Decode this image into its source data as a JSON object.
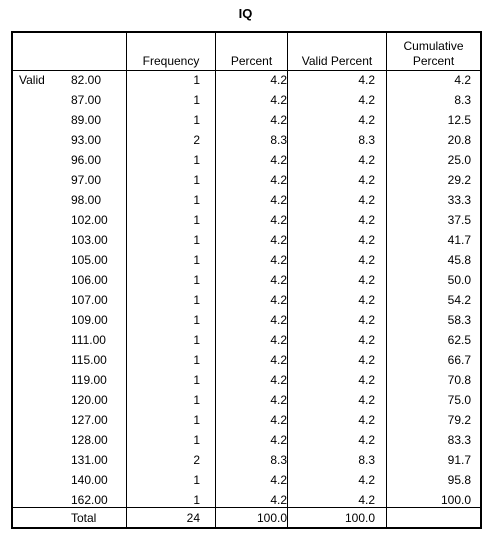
{
  "title": "IQ",
  "headers": {
    "frequency": "Frequency",
    "percent": "Percent",
    "valid_percent": "Valid Percent",
    "cumulative_line1": "Cumulative",
    "cumulative_line2": "Percent"
  },
  "valid_label": "Valid",
  "rows": [
    {
      "value": "82.00",
      "frequency": "1",
      "percent": "4.2",
      "valid_percent": "4.2",
      "cumulative": "4.2"
    },
    {
      "value": "87.00",
      "frequency": "1",
      "percent": "4.2",
      "valid_percent": "4.2",
      "cumulative": "8.3"
    },
    {
      "value": "89.00",
      "frequency": "1",
      "percent": "4.2",
      "valid_percent": "4.2",
      "cumulative": "12.5"
    },
    {
      "value": "93.00",
      "frequency": "2",
      "percent": "8.3",
      "valid_percent": "8.3",
      "cumulative": "20.8"
    },
    {
      "value": "96.00",
      "frequency": "1",
      "percent": "4.2",
      "valid_percent": "4.2",
      "cumulative": "25.0"
    },
    {
      "value": "97.00",
      "frequency": "1",
      "percent": "4.2",
      "valid_percent": "4.2",
      "cumulative": "29.2"
    },
    {
      "value": "98.00",
      "frequency": "1",
      "percent": "4.2",
      "valid_percent": "4.2",
      "cumulative": "33.3"
    },
    {
      "value": "102.00",
      "frequency": "1",
      "percent": "4.2",
      "valid_percent": "4.2",
      "cumulative": "37.5"
    },
    {
      "value": "103.00",
      "frequency": "1",
      "percent": "4.2",
      "valid_percent": "4.2",
      "cumulative": "41.7"
    },
    {
      "value": "105.00",
      "frequency": "1",
      "percent": "4.2",
      "valid_percent": "4.2",
      "cumulative": "45.8"
    },
    {
      "value": "106.00",
      "frequency": "1",
      "percent": "4.2",
      "valid_percent": "4.2",
      "cumulative": "50.0"
    },
    {
      "value": "107.00",
      "frequency": "1",
      "percent": "4.2",
      "valid_percent": "4.2",
      "cumulative": "54.2"
    },
    {
      "value": "109.00",
      "frequency": "1",
      "percent": "4.2",
      "valid_percent": "4.2",
      "cumulative": "58.3"
    },
    {
      "value": "111.00",
      "frequency": "1",
      "percent": "4.2",
      "valid_percent": "4.2",
      "cumulative": "62.5"
    },
    {
      "value": "115.00",
      "frequency": "1",
      "percent": "4.2",
      "valid_percent": "4.2",
      "cumulative": "66.7"
    },
    {
      "value": "119.00",
      "frequency": "1",
      "percent": "4.2",
      "valid_percent": "4.2",
      "cumulative": "70.8"
    },
    {
      "value": "120.00",
      "frequency": "1",
      "percent": "4.2",
      "valid_percent": "4.2",
      "cumulative": "75.0"
    },
    {
      "value": "127.00",
      "frequency": "1",
      "percent": "4.2",
      "valid_percent": "4.2",
      "cumulative": "79.2"
    },
    {
      "value": "128.00",
      "frequency": "1",
      "percent": "4.2",
      "valid_percent": "4.2",
      "cumulative": "83.3"
    },
    {
      "value": "131.00",
      "frequency": "2",
      "percent": "8.3",
      "valid_percent": "8.3",
      "cumulative": "91.7"
    },
    {
      "value": "140.00",
      "frequency": "1",
      "percent": "4.2",
      "valid_percent": "4.2",
      "cumulative": "95.8"
    },
    {
      "value": "162.00",
      "frequency": "1",
      "percent": "4.2",
      "valid_percent": "4.2",
      "cumulative": "100.0"
    }
  ],
  "total": {
    "label": "Total",
    "frequency": "24",
    "percent": "100.0",
    "valid_percent": "100.0"
  }
}
